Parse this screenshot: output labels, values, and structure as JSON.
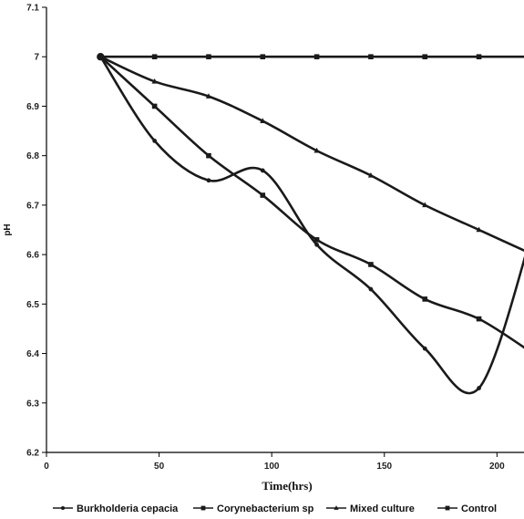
{
  "chart_data": {
    "type": "line",
    "title": "",
    "xlabel": "Time(hrs)",
    "ylabel": "pH",
    "xlim": [
      0,
      212
    ],
    "ylim": [
      6.2,
      7.1
    ],
    "xticks": [
      0,
      50,
      100,
      150,
      200
    ],
    "yticks": [
      6.2,
      6.3,
      6.4,
      6.5,
      6.6,
      6.7,
      6.8,
      6.9,
      7,
      7.1
    ],
    "ytick_labels": [
      "6.2",
      "6.3",
      "6.4",
      "6.5",
      "6.6",
      "6.7",
      "6.8",
      "6.9",
      "7",
      "7.1"
    ],
    "grid": false,
    "legend_position": "bottom",
    "line_color": "#1a1a1a",
    "series": [
      {
        "name": "Burkholderia cepacia",
        "marker": "circle",
        "x": [
          24,
          48,
          72,
          96,
          120,
          144,
          168,
          192,
          216
        ],
        "y": [
          7.0,
          6.83,
          6.75,
          6.77,
          6.62,
          6.53,
          6.41,
          6.33,
          6.65
        ]
      },
      {
        "name": "Corynebacterium sp",
        "marker": "square",
        "x": [
          24,
          48,
          72,
          96,
          120,
          144,
          168,
          192,
          216
        ],
        "y": [
          7.0,
          6.9,
          6.8,
          6.72,
          6.63,
          6.58,
          6.51,
          6.47,
          6.4
        ]
      },
      {
        "name": "Mixed culture",
        "marker": "triangle",
        "x": [
          24,
          48,
          72,
          96,
          120,
          144,
          168,
          192,
          216
        ],
        "y": [
          7.0,
          6.95,
          6.92,
          6.87,
          6.81,
          6.76,
          6.7,
          6.65,
          6.6
        ]
      },
      {
        "name": "Control",
        "marker": "square",
        "x": [
          24,
          48,
          72,
          96,
          120,
          144,
          168,
          192,
          216
        ],
        "y": [
          7.0,
          7.0,
          7.0,
          7.0,
          7.0,
          7.0,
          7.0,
          7.0,
          7.0
        ]
      }
    ]
  }
}
